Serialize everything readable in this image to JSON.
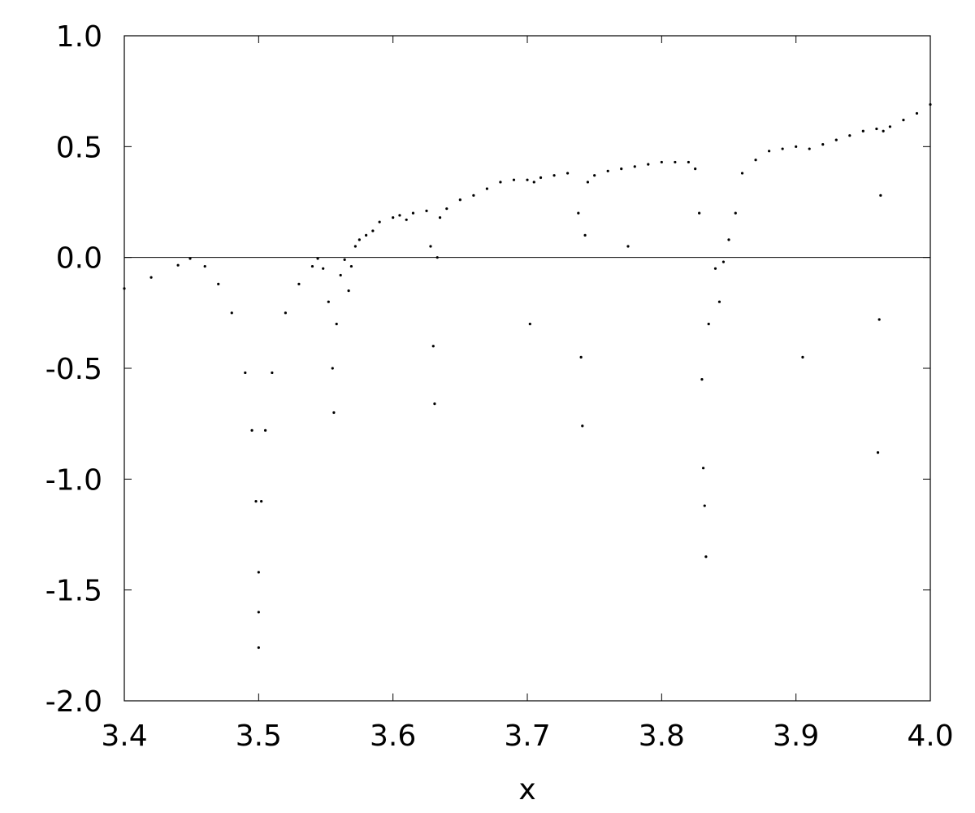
{
  "chart_data": {
    "type": "scatter",
    "title": "",
    "xlabel": "x",
    "ylabel": "",
    "xlim": [
      3.4,
      4.0
    ],
    "ylim": [
      -2.0,
      1.0
    ],
    "grid": false,
    "legend": "none",
    "x_ticks": [
      "3.4",
      "3.5",
      "3.6",
      "3.7",
      "3.8",
      "3.9",
      "4.0"
    ],
    "y_ticks": [
      "1.0",
      "0.5",
      "0.0",
      "-0.5",
      "-1.0",
      "-1.5",
      "-2.0"
    ],
    "reference_line_y": 0,
    "point_color": "#000000",
    "series": [
      {
        "points": [
          [
            3.4,
            -0.14
          ],
          [
            3.42,
            -0.09
          ],
          [
            3.44,
            -0.035
          ],
          [
            3.449,
            -0.005
          ],
          [
            3.46,
            -0.04
          ],
          [
            3.47,
            -0.12
          ],
          [
            3.48,
            -0.25
          ],
          [
            3.49,
            -0.52
          ],
          [
            3.495,
            -0.78
          ],
          [
            3.498,
            -1.1
          ],
          [
            3.5,
            -1.42
          ],
          [
            3.5,
            -1.6
          ],
          [
            3.5,
            -1.76
          ],
          [
            3.502,
            -1.1
          ],
          [
            3.505,
            -0.78
          ],
          [
            3.51,
            -0.52
          ],
          [
            3.52,
            -0.25
          ],
          [
            3.53,
            -0.12
          ],
          [
            3.54,
            -0.04
          ],
          [
            3.544,
            -0.005
          ],
          [
            3.548,
            -0.05
          ],
          [
            3.552,
            -0.2
          ],
          [
            3.555,
            -0.5
          ],
          [
            3.556,
            -0.7
          ],
          [
            3.558,
            -0.3
          ],
          [
            3.561,
            -0.08
          ],
          [
            3.564,
            -0.01
          ],
          [
            3.567,
            -0.15
          ],
          [
            3.569,
            -0.04
          ],
          [
            3.572,
            0.05
          ],
          [
            3.575,
            0.08
          ],
          [
            3.58,
            0.1
          ],
          [
            3.585,
            0.12
          ],
          [
            3.59,
            0.16
          ],
          [
            3.6,
            0.18
          ],
          [
            3.605,
            0.19
          ],
          [
            3.61,
            0.17
          ],
          [
            3.615,
            0.2
          ],
          [
            3.625,
            0.21
          ],
          [
            3.628,
            0.05
          ],
          [
            3.63,
            -0.4
          ],
          [
            3.631,
            -0.66
          ],
          [
            3.633,
            0.0
          ],
          [
            3.635,
            0.18
          ],
          [
            3.64,
            0.22
          ],
          [
            3.65,
            0.26
          ],
          [
            3.66,
            0.28
          ],
          [
            3.67,
            0.31
          ],
          [
            3.68,
            0.34
          ],
          [
            3.69,
            0.35
          ],
          [
            3.7,
            0.35
          ],
          [
            3.702,
            -0.3
          ],
          [
            3.705,
            0.34
          ],
          [
            3.71,
            0.36
          ],
          [
            3.72,
            0.37
          ],
          [
            3.73,
            0.38
          ],
          [
            3.738,
            0.2
          ],
          [
            3.74,
            -0.45
          ],
          [
            3.741,
            -0.76
          ],
          [
            3.743,
            0.1
          ],
          [
            3.745,
            0.34
          ],
          [
            3.75,
            0.37
          ],
          [
            3.76,
            0.39
          ],
          [
            3.77,
            0.4
          ],
          [
            3.775,
            0.05
          ],
          [
            3.78,
            0.41
          ],
          [
            3.79,
            0.42
          ],
          [
            3.8,
            0.43
          ],
          [
            3.81,
            0.43
          ],
          [
            3.82,
            0.43
          ],
          [
            3.825,
            0.4
          ],
          [
            3.828,
            0.2
          ],
          [
            3.83,
            -0.55
          ],
          [
            3.831,
            -0.95
          ],
          [
            3.832,
            -1.12
          ],
          [
            3.833,
            -1.35
          ],
          [
            3.835,
            -0.3
          ],
          [
            3.84,
            -0.05
          ],
          [
            3.843,
            -0.2
          ],
          [
            3.846,
            -0.02
          ],
          [
            3.85,
            0.08
          ],
          [
            3.855,
            0.2
          ],
          [
            3.86,
            0.38
          ],
          [
            3.87,
            0.44
          ],
          [
            3.88,
            0.48
          ],
          [
            3.89,
            0.49
          ],
          [
            3.9,
            0.5
          ],
          [
            3.905,
            -0.45
          ],
          [
            3.91,
            0.49
          ],
          [
            3.92,
            0.51
          ],
          [
            3.93,
            0.53
          ],
          [
            3.94,
            0.55
          ],
          [
            3.95,
            0.57
          ],
          [
            3.96,
            0.58
          ],
          [
            3.961,
            -0.88
          ],
          [
            3.962,
            -0.28
          ],
          [
            3.963,
            0.28
          ],
          [
            3.965,
            0.57
          ],
          [
            3.97,
            0.59
          ],
          [
            3.98,
            0.62
          ],
          [
            3.99,
            0.65
          ],
          [
            4.0,
            0.69
          ]
        ]
      }
    ]
  }
}
